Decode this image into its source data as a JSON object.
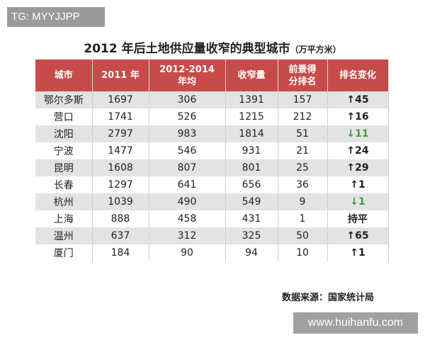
{
  "watermark_top": "TG: MYYJJPP",
  "header": {
    "title": "2012 年后土地供应量收窄的典型城市",
    "unit": "（万平方米）"
  },
  "table": {
    "columns": [
      "城市",
      "2011 年",
      "2012-2014\n年均",
      "收窄量",
      "前景得\n分排名",
      "排名变化"
    ],
    "rows": [
      [
        "鄂尔多斯",
        1697,
        306,
        1391,
        157,
        "↑45"
      ],
      [
        "营口",
        1741,
        526,
        1215,
        212,
        "↑16"
      ],
      [
        "沈阳",
        2797,
        983,
        1814,
        51,
        "↓11"
      ],
      [
        "宁波",
        1477,
        546,
        931,
        21,
        "↑24"
      ],
      [
        "昆明",
        1608,
        807,
        801,
        25,
        "↑29"
      ],
      [
        "长春",
        1297,
        641,
        656,
        36,
        "↑1"
      ],
      [
        "杭州",
        1039,
        490,
        549,
        9,
        "↓1"
      ],
      [
        "上海",
        888,
        458,
        431,
        1,
        "持平"
      ],
      [
        "温州",
        637,
        312,
        325,
        50,
        "↑65"
      ],
      [
        "厦门",
        184,
        90,
        94,
        10,
        "↑1"
      ]
    ]
  },
  "source": "数据来源：国家统计局",
  "watermark_bottom": "www.huihanfu.com"
}
